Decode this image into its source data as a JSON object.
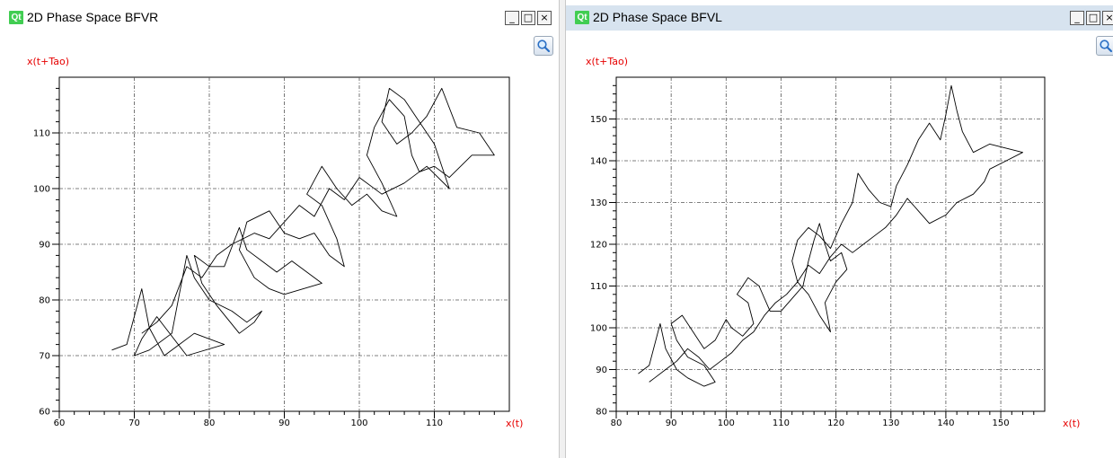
{
  "windows": [
    {
      "title": "2D Phase Space BFVR",
      "controls": {
        "minimize": "_",
        "maximize": "□",
        "close": "×"
      },
      "chart_data": {
        "type": "line",
        "xlabel": "x(t)",
        "ylabel": "x(t+Tao)",
        "xlim": [
          60,
          120
        ],
        "ylim": [
          60,
          120
        ],
        "xticks": [
          60,
          70,
          80,
          90,
          100,
          110
        ],
        "yticks": [
          60,
          70,
          80,
          90,
          100,
          110
        ],
        "grid": true,
        "series": [
          {
            "values": [
              [
                67,
                71
              ],
              [
                69,
                72
              ],
              [
                71,
                82
              ],
              [
                72,
                75
              ],
              [
                74,
                70
              ],
              [
                76,
                72
              ],
              [
                78,
                74
              ],
              [
                80,
                73
              ],
              [
                82,
                72
              ],
              [
                77,
                70
              ],
              [
                73,
                77
              ],
              [
                71,
                73
              ],
              [
                70,
                70
              ],
              [
                72,
                71
              ],
              [
                75,
                74
              ],
              [
                77,
                88
              ],
              [
                78,
                84
              ],
              [
                80,
                80
              ],
              [
                83,
                78
              ],
              [
                85,
                76
              ],
              [
                87,
                78
              ],
              [
                86,
                76
              ],
              [
                84,
                74
              ],
              [
                81,
                79
              ],
              [
                79,
                83
              ],
              [
                78,
                88
              ],
              [
                80,
                86
              ],
              [
                82,
                86
              ],
              [
                84,
                93
              ],
              [
                85,
                89
              ],
              [
                87,
                87
              ],
              [
                89,
                85
              ],
              [
                91,
                87
              ],
              [
                93,
                85
              ],
              [
                95,
                83
              ],
              [
                90,
                81
              ],
              [
                88,
                82
              ],
              [
                86,
                84
              ],
              [
                84,
                89
              ],
              [
                85,
                94
              ],
              [
                88,
                96
              ],
              [
                90,
                92
              ],
              [
                92,
                91
              ],
              [
                94,
                92
              ],
              [
                96,
                88
              ],
              [
                98,
                86
              ],
              [
                97,
                91
              ],
              [
                95,
                97
              ],
              [
                93,
                99
              ],
              [
                95,
                104
              ],
              [
                97,
                100
              ],
              [
                99,
                97
              ],
              [
                101,
                99
              ],
              [
                103,
                96
              ],
              [
                105,
                95
              ],
              [
                103,
                101
              ],
              [
                101,
                106
              ],
              [
                102,
                111
              ],
              [
                104,
                116
              ],
              [
                106,
                113
              ],
              [
                107,
                106
              ],
              [
                108,
                103
              ],
              [
                110,
                104
              ],
              [
                112,
                102
              ],
              [
                115,
                106
              ],
              [
                118,
                106
              ],
              [
                116,
                110
              ],
              [
                113,
                111
              ],
              [
                111,
                118
              ],
              [
                109,
                113
              ],
              [
                107,
                110
              ],
              [
                105,
                108
              ],
              [
                103,
                112
              ],
              [
                104,
                118
              ],
              [
                106,
                116
              ],
              [
                108,
                112
              ],
              [
                110,
                108
              ],
              [
                112,
                100
              ],
              [
                109,
                104
              ],
              [
                106,
                101
              ],
              [
                103,
                99
              ],
              [
                100,
                102
              ],
              [
                98,
                98
              ],
              [
                96,
                100
              ],
              [
                94,
                95
              ],
              [
                92,
                97
              ],
              [
                90,
                94
              ],
              [
                88,
                91
              ],
              [
                86,
                92
              ],
              [
                83,
                90
              ],
              [
                81,
                88
              ],
              [
                79,
                84
              ],
              [
                77,
                86
              ],
              [
                75,
                79
              ],
              [
                73,
                76
              ],
              [
                71,
                74
              ]
            ]
          }
        ]
      }
    },
    {
      "title": "2D Phase Space BFVL",
      "controls": {
        "minimize": "_",
        "maximize": "□",
        "close": "×"
      },
      "chart_data": {
        "type": "line",
        "xlabel": "x(t)",
        "ylabel": "x(t+Tao)",
        "xlim": [
          80,
          158
        ],
        "ylim": [
          80,
          160
        ],
        "xticks": [
          80,
          90,
          100,
          110,
          120,
          130,
          140,
          150
        ],
        "yticks": [
          80,
          90,
          100,
          110,
          120,
          130,
          140,
          150
        ],
        "grid": true,
        "series": [
          {
            "values": [
              [
                84,
                89
              ],
              [
                86,
                91
              ],
              [
                88,
                101
              ],
              [
                89,
                95
              ],
              [
                91,
                90
              ],
              [
                93,
                88
              ],
              [
                96,
                86
              ],
              [
                98,
                87
              ],
              [
                96,
                91
              ],
              [
                93,
                93
              ],
              [
                91,
                97
              ],
              [
                90,
                101
              ],
              [
                92,
                103
              ],
              [
                94,
                99
              ],
              [
                96,
                95
              ],
              [
                98,
                97
              ],
              [
                100,
                102
              ],
              [
                101,
                100
              ],
              [
                103,
                98
              ],
              [
                105,
                101
              ],
              [
                104,
                106
              ],
              [
                102,
                108
              ],
              [
                104,
                112
              ],
              [
                106,
                110
              ],
              [
                108,
                104
              ],
              [
                110,
                104
              ],
              [
                112,
                107
              ],
              [
                114,
                110
              ],
              [
                115,
                116
              ],
              [
                116,
                121
              ],
              [
                117,
                125
              ],
              [
                118,
                120
              ],
              [
                119,
                116
              ],
              [
                121,
                118
              ],
              [
                122,
                114
              ],
              [
                120,
                111
              ],
              [
                118,
                106
              ],
              [
                119,
                99
              ],
              [
                117,
                103
              ],
              [
                115,
                108
              ],
              [
                113,
                111
              ],
              [
                112,
                116
              ],
              [
                113,
                121
              ],
              [
                115,
                124
              ],
              [
                117,
                122
              ],
              [
                119,
                119
              ],
              [
                121,
                125
              ],
              [
                123,
                130
              ],
              [
                124,
                137
              ],
              [
                126,
                133
              ],
              [
                128,
                130
              ],
              [
                130,
                129
              ],
              [
                131,
                134
              ],
              [
                133,
                139
              ],
              [
                135,
                145
              ],
              [
                137,
                149
              ],
              [
                139,
                145
              ],
              [
                140,
                151
              ],
              [
                141,
                158
              ],
              [
                142,
                152
              ],
              [
                143,
                147
              ],
              [
                145,
                142
              ],
              [
                148,
                144
              ],
              [
                151,
                143
              ],
              [
                154,
                142
              ],
              [
                151,
                140
              ],
              [
                148,
                138
              ],
              [
                147,
                135
              ],
              [
                145,
                132
              ],
              [
                142,
                130
              ],
              [
                140,
                127
              ],
              [
                137,
                125
              ],
              [
                135,
                128
              ],
              [
                133,
                131
              ],
              [
                131,
                127
              ],
              [
                129,
                124
              ],
              [
                127,
                122
              ],
              [
                125,
                120
              ],
              [
                123,
                118
              ],
              [
                121,
                120
              ],
              [
                119,
                117
              ],
              [
                117,
                113
              ],
              [
                115,
                115
              ],
              [
                113,
                111
              ],
              [
                111,
                108
              ],
              [
                109,
                106
              ],
              [
                107,
                103
              ],
              [
                105,
                99
              ],
              [
                103,
                97
              ],
              [
                101,
                94
              ],
              [
                99,
                92
              ],
              [
                97,
                90
              ],
              [
                95,
                93
              ],
              [
                93,
                95
              ],
              [
                91,
                92
              ],
              [
                89,
                90
              ],
              [
                87,
                88
              ],
              [
                86,
                87
              ]
            ]
          }
        ]
      }
    }
  ]
}
